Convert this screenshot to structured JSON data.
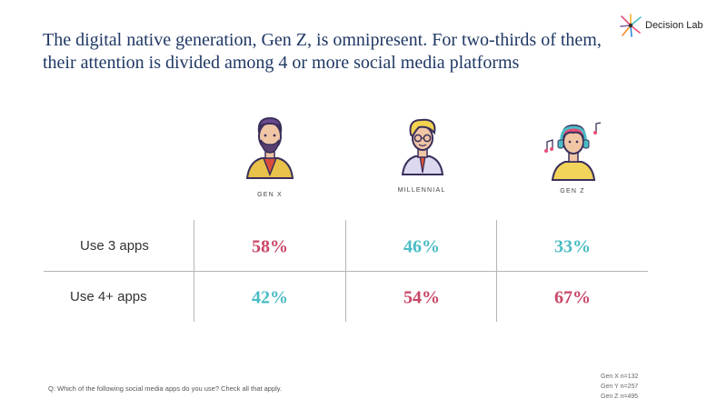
{
  "title": "The digital native generation, Gen Z, is omnipresent. For two-thirds of them, their attention is divided among 4 or more social media platforms",
  "brand": {
    "name": "Decision Lab"
  },
  "icons": [
    "gen-x-avatar-icon",
    "millennial-avatar-icon",
    "gen-z-avatar-icon",
    "music-note-icon",
    "decision-lab-logo-icon"
  ],
  "colors": {
    "title": "#1f3864",
    "high": "#c94767",
    "low": "#49bcc4"
  },
  "chart_data": {
    "type": "table",
    "columns": [
      "GEN X",
      "MILLENNIAL",
      "GEN Z"
    ],
    "rows": [
      {
        "label": "Use 3 apps",
        "values": [
          "58%",
          "46%",
          "33%"
        ],
        "colors": [
          "#c94767",
          "#49bcc4",
          "#49bcc4"
        ]
      },
      {
        "label": "Use 4+ apps",
        "values": [
          "42%",
          "54%",
          "67%"
        ],
        "colors": [
          "#49bcc4",
          "#c94767",
          "#c94767"
        ]
      }
    ]
  },
  "footnote": "Q: Which of the following social media apps do you use? Check all that apply.",
  "samples": [
    "Gen X n=132",
    "Gen Y n=257",
    "Gen Z n=495"
  ]
}
